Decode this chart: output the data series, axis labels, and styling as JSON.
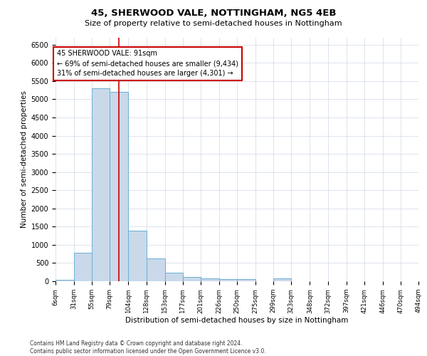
{
  "title": "45, SHERWOOD VALE, NOTTINGHAM, NG5 4EB",
  "subtitle": "Size of property relative to semi-detached houses in Nottingham",
  "xlabel": "Distribution of semi-detached houses by size in Nottingham",
  "ylabel": "Number of semi-detached properties",
  "property_size": 91,
  "annotation_line1": "45 SHERWOOD VALE: 91sqm",
  "annotation_line2": "← 69% of semi-detached houses are smaller (9,434)",
  "annotation_line3": "31% of semi-detached houses are larger (4,301) →",
  "footer1": "Contains HM Land Registry data © Crown copyright and database right 2024.",
  "footer2": "Contains public sector information licensed under the Open Government Licence v3.0.",
  "bar_color": "#c9d9ea",
  "bar_edge_color": "#6aaed6",
  "red_line_color": "#cc0000",
  "annotation_box_color": "#ffffff",
  "annotation_box_edge": "#cc0000",
  "grid_color": "#d0d8e8",
  "background_color": "#ffffff",
  "bin_edges": [
    6,
    31,
    55,
    79,
    104,
    128,
    153,
    177,
    201,
    226,
    250,
    275,
    299,
    323,
    348,
    372,
    397,
    421,
    446,
    470,
    494
  ],
  "bin_labels": [
    "6sqm",
    "31sqm",
    "55sqm",
    "79sqm",
    "104sqm",
    "128sqm",
    "153sqm",
    "177sqm",
    "201sqm",
    "226sqm",
    "250sqm",
    "275sqm",
    "299sqm",
    "323sqm",
    "348sqm",
    "372sqm",
    "397sqm",
    "421sqm",
    "446sqm",
    "470sqm",
    "494sqm"
  ],
  "bar_heights": [
    30,
    790,
    5300,
    5200,
    1380,
    630,
    240,
    110,
    80,
    60,
    60,
    0,
    80,
    0,
    0,
    0,
    0,
    0,
    0,
    0
  ],
  "ylim": [
    0,
    6700
  ],
  "yticks": [
    0,
    500,
    1000,
    1500,
    2000,
    2500,
    3000,
    3500,
    4000,
    4500,
    5000,
    5500,
    6000,
    6500
  ]
}
